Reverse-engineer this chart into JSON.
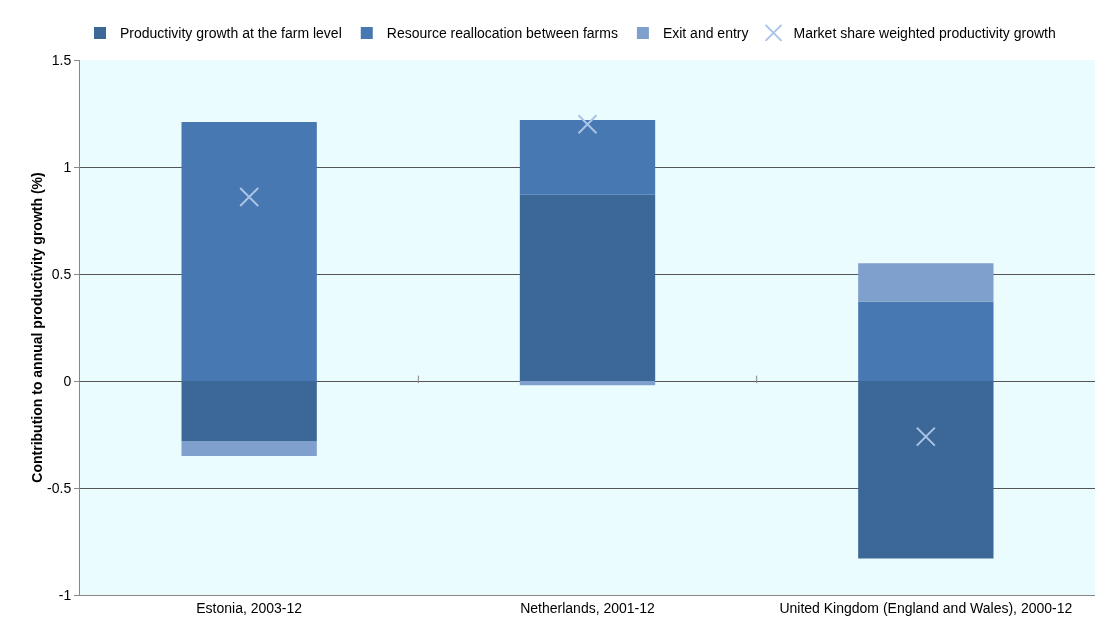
{
  "chart_data": {
    "type": "bar",
    "stacked": true,
    "ylabel": "Contribution to annual productivity growth (%)",
    "categories": [
      "Estonia, 2003-12",
      "Netherlands, 2001-12",
      "United Kingdom (England and Wales), 2000-12"
    ],
    "series": [
      {
        "name": "Productivity growth at the farm level",
        "color": "#3b6897",
        "values": [
          -0.28,
          0.87,
          -0.83
        ]
      },
      {
        "name": "Resource reallocation between farms",
        "color": "#4878b2",
        "values": [
          1.21,
          0.35,
          0.37
        ]
      },
      {
        "name": "Exit and entry",
        "color": "#7f9fcc",
        "values": [
          -0.07,
          -0.02,
          0.18
        ]
      },
      {
        "name": "Market share weighted productivity growth",
        "type": "scatter",
        "marker": "cross",
        "color": "#a9c4e6",
        "x": [
          "Estonia, 2003-12",
          "Netherlands, 2001-12",
          "United Kingdom (England and Wales), 2000-12"
        ],
        "values": [
          0.86,
          1.2,
          -0.26
        ]
      }
    ],
    "ylim": [
      -1,
      1.5
    ],
    "yticks": [
      {
        "value": -1,
        "label": "-1"
      },
      {
        "value": -0.5,
        "label": "-0.5"
      },
      {
        "value": 0,
        "label": "0"
      },
      {
        "value": 0.5,
        "label": "0.5"
      },
      {
        "value": 1,
        "label": "1"
      },
      {
        "value": 1.5,
        "label": "1.5"
      }
    ],
    "grid": "y",
    "legend": "top"
  }
}
